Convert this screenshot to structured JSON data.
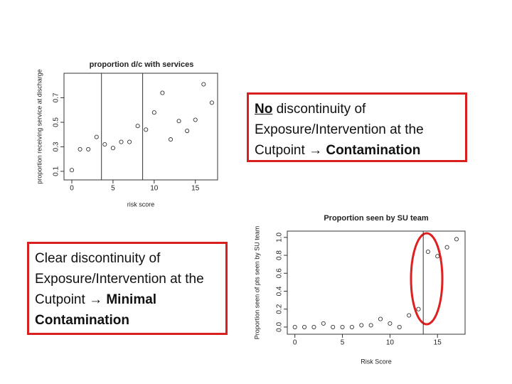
{
  "chart_data": [
    {
      "type": "scatter",
      "title": "proportion d/c with services",
      "x_label": "risk score",
      "y_label": "proportion receiving service at discharge",
      "x": [
        0,
        1,
        2,
        3,
        4,
        5,
        6,
        7,
        8,
        9,
        10,
        11,
        12,
        13,
        14,
        15,
        16,
        17
      ],
      "series": [
        {
          "name": null,
          "color": "#333333",
          "values": [
            0.11,
            0.28,
            0.28,
            0.38,
            0.32,
            0.29,
            0.34,
            0.34,
            0.47,
            0.44,
            0.58,
            0.74,
            0.36,
            0.51,
            0.43,
            0.52,
            0.81,
            0.66
          ]
        }
      ],
      "xlim": [
        -0.95,
        17.7
      ],
      "ylim": [
        0.03,
        0.9
      ],
      "xticks": [
        0,
        5,
        10,
        15
      ],
      "yticks": [
        0.1,
        0.3,
        0.5,
        0.7
      ],
      "vlines": [
        3.6,
        8.6
      ]
    },
    {
      "type": "scatter",
      "title": "Proportion seen by SU team",
      "x_label": "Risk Score",
      "y_label": "Proportion seen of pts seen by SU team",
      "x": [
        0,
        1,
        2,
        3,
        4,
        5,
        6,
        7,
        8,
        9,
        10,
        11,
        12,
        13,
        14,
        15,
        16,
        17
      ],
      "series": [
        {
          "name": null,
          "color": "#333333",
          "values": [
            0,
            0,
            0,
            0.04,
            0,
            0,
            0,
            0.02,
            0.02,
            0.09,
            0.04,
            0,
            0.13,
            0.2,
            0.84,
            0.79,
            0.89,
            0.98
          ]
        }
      ],
      "xlim": [
        -0.8,
        17.9
      ],
      "ylim": [
        -0.08,
        1.07
      ],
      "xticks": [
        0,
        5,
        10,
        15
      ],
      "yticks": [
        {
          "value": 0,
          "label": "0.0"
        },
        0.2,
        0.4,
        0.6,
        0.8,
        {
          "value": 1,
          "label": "1.0"
        }
      ],
      "vlines": [
        13.5
      ]
    }
  ],
  "text_boxes": [
    {
      "emphasis": "No",
      "text": "discontinuity of Exposure/Intervention at the Cutpoint",
      "arrow": "→",
      "conclusion": "Contamination"
    },
    {
      "text": "Clear discontinuity of Exposure/Intervention at the Cutpoint",
      "arrow": "→",
      "conclusion": "Minimal Contamination"
    }
  ]
}
